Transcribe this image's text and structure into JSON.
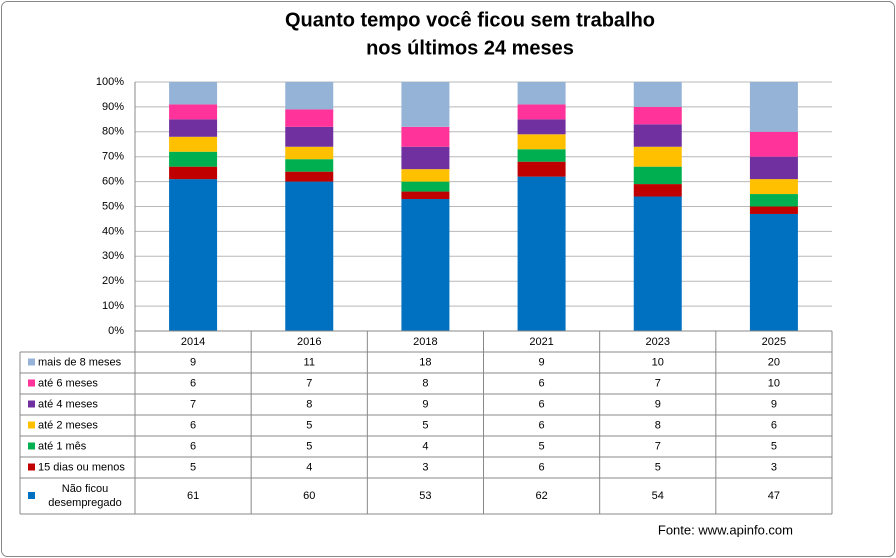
{
  "chart_data": {
    "type": "stacked-bar",
    "title": [
      "Quanto tempo você ficou sem trabalho",
      "nos últimos 24 meses"
    ],
    "categories": [
      "2014",
      "2016",
      "2018",
      "2021",
      "2023",
      "2025"
    ],
    "series": [
      {
        "name": "Não ficou desempregado",
        "color": "#0070C0",
        "values": [
          61,
          60,
          53,
          62,
          54,
          47
        ]
      },
      {
        "name": "15 dias ou menos",
        "color": "#C00000",
        "values": [
          5,
          4,
          3,
          6,
          5,
          3
        ]
      },
      {
        "name": "até 1 mês",
        "color": "#00B050",
        "values": [
          6,
          5,
          4,
          5,
          7,
          5
        ]
      },
      {
        "name": "até 2 meses",
        "color": "#FFC000",
        "values": [
          6,
          5,
          5,
          6,
          8,
          6
        ]
      },
      {
        "name": "até 4 meses",
        "color": "#7030A0",
        "values": [
          7,
          8,
          9,
          6,
          9,
          9
        ]
      },
      {
        "name": "até 6 meses",
        "color": "#FF3399",
        "values": [
          6,
          7,
          8,
          6,
          7,
          10
        ]
      },
      {
        "name": "mais de 8 meses",
        "color": "#95B3D7",
        "values": [
          9,
          11,
          18,
          9,
          10,
          20
        ]
      }
    ],
    "ylim": [
      0,
      100
    ],
    "yticks": [
      {
        "value": 0,
        "label": "0%"
      },
      {
        "value": 10,
        "label": "10%"
      },
      {
        "value": 20,
        "label": "20%"
      },
      {
        "value": 30,
        "label": "30%"
      },
      {
        "value": 40,
        "label": "40%"
      },
      {
        "value": 50,
        "label": "50%"
      },
      {
        "value": 60,
        "label": "60%"
      },
      {
        "value": 70,
        "label": "70%"
      },
      {
        "value": 80,
        "label": "80%"
      },
      {
        "value": 90,
        "label": "90%"
      },
      {
        "value": 100,
        "label": "100%"
      }
    ],
    "grid": true,
    "source": "Fonte: www.apinfo.com"
  }
}
